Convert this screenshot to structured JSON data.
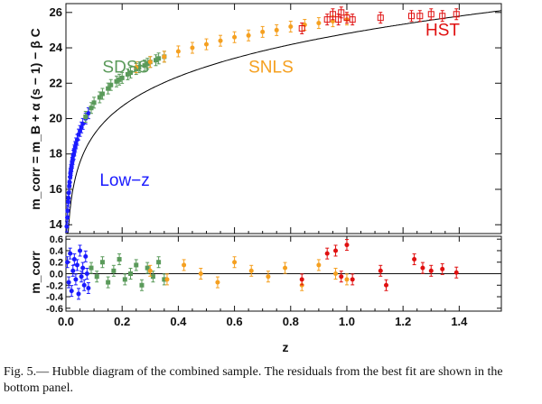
{
  "caption": "Fig. 5.— Hubble diagram of the combined sample. The residuals from the best fit are shown in the bottom panel.",
  "chart_data": [
    {
      "type": "scatter",
      "panel": "top",
      "ylabel": "m_corr = m_B + α (s − 1) − β C",
      "xlim": [
        0,
        1.55
      ],
      "ylim": [
        13.5,
        26.5
      ],
      "yticks": [
        "14",
        "16",
        "18",
        "20",
        "22",
        "24",
        "26"
      ],
      "grid": false,
      "series": [
        {
          "name": "Low-z",
          "color": "#1a1aff",
          "marker": "circle",
          "x": [
            0.003,
            0.005,
            0.006,
            0.008,
            0.009,
            0.01,
            0.012,
            0.013,
            0.015,
            0.016,
            0.018,
            0.02,
            0.022,
            0.024,
            0.026,
            0.028,
            0.03,
            0.033,
            0.036,
            0.04,
            0.045,
            0.05,
            0.055,
            0.06,
            0.07,
            0.08
          ],
          "y": [
            13.9,
            14.4,
            14.8,
            15.3,
            15.5,
            15.8,
            16.2,
            16.4,
            16.7,
            16.9,
            17.1,
            17.3,
            17.5,
            17.7,
            17.9,
            18.0,
            18.2,
            18.4,
            18.6,
            18.8,
            19.1,
            19.3,
            19.5,
            19.7,
            20.0,
            20.3
          ]
        },
        {
          "name": "SDSS",
          "color": "#5a9a5a",
          "marker": "square",
          "x": [
            0.07,
            0.09,
            0.1,
            0.12,
            0.13,
            0.15,
            0.16,
            0.18,
            0.19,
            0.2,
            0.22,
            0.23,
            0.25,
            0.26,
            0.28,
            0.29,
            0.3,
            0.32,
            0.33,
            0.35
          ],
          "y": [
            20.1,
            20.6,
            20.9,
            21.2,
            21.4,
            21.7,
            21.9,
            22.1,
            22.2,
            22.3,
            22.5,
            22.6,
            22.8,
            22.9,
            23.0,
            23.1,
            23.2,
            23.3,
            23.4,
            23.5
          ]
        },
        {
          "name": "SNLS",
          "color": "#f5a020",
          "marker": "circle",
          "x": [
            0.25,
            0.3,
            0.35,
            0.4,
            0.45,
            0.5,
            0.55,
            0.6,
            0.65,
            0.7,
            0.75,
            0.8,
            0.85,
            0.9,
            0.95,
            1.0
          ],
          "y": [
            22.9,
            23.2,
            23.5,
            23.8,
            24.0,
            24.2,
            24.4,
            24.6,
            24.7,
            24.9,
            25.0,
            25.2,
            25.3,
            25.4,
            25.5,
            25.6
          ]
        },
        {
          "name": "HST",
          "color": "#e01010",
          "marker": "open-square",
          "x": [
            0.84,
            0.93,
            0.95,
            0.97,
            0.98,
            1.0,
            1.02,
            1.12,
            1.23,
            1.26,
            1.3,
            1.34,
            1.39
          ],
          "y": [
            25.1,
            25.6,
            25.9,
            25.6,
            26.0,
            25.7,
            25.6,
            25.7,
            25.8,
            25.8,
            25.9,
            25.8,
            25.9
          ]
        }
      ],
      "annotations": [
        {
          "text": "SDSS",
          "color": "#5a9a5a",
          "x": 0.13,
          "y": 22.6
        },
        {
          "text": "SNLS",
          "color": "#f5a020",
          "x": 0.65,
          "y": 22.6
        },
        {
          "text": "HST",
          "color": "#e01010",
          "x": 1.28,
          "y": 24.7
        },
        {
          "text": "Low−z",
          "color": "#1a1aff",
          "x": 0.12,
          "y": 16.2
        }
      ],
      "fit_line": {
        "color": "#000000"
      }
    },
    {
      "type": "scatter",
      "panel": "bottom",
      "xlabel": "z",
      "ylabel": "m_corr",
      "xlim": [
        0,
        1.55
      ],
      "ylim": [
        -0.65,
        0.65
      ],
      "xticks": [
        "0.0",
        "0.2",
        "0.4",
        "0.6",
        "0.8",
        "1.0",
        "1.2",
        "1.4"
      ],
      "yticks": [
        "0.6",
        "0.4",
        "0.2",
        "0.0",
        "-0.2",
        "-0.4",
        "-0.6"
      ],
      "zero_line": true,
      "series": [
        {
          "name": "Low-z",
          "color": "#1a1aff",
          "x": [
            0.005,
            0.01,
            0.015,
            0.02,
            0.025,
            0.03,
            0.035,
            0.04,
            0.045,
            0.05,
            0.055,
            0.06,
            0.065,
            0.07,
            0.075,
            0.08
          ],
          "y": [
            0.2,
            -0.15,
            0.35,
            -0.3,
            0.05,
            0.25,
            -0.1,
            0.15,
            -0.35,
            0.4,
            -0.05,
            0.1,
            -0.2,
            0.3,
            0.0,
            -0.25
          ]
        },
        {
          "name": "SDSS",
          "color": "#5a9a5a",
          "x": [
            0.09,
            0.11,
            0.13,
            0.15,
            0.17,
            0.19,
            0.21,
            0.23,
            0.25,
            0.27,
            0.29,
            0.31,
            0.33,
            0.35
          ],
          "y": [
            0.1,
            -0.05,
            0.2,
            -0.15,
            0.05,
            0.25,
            -0.1,
            0.0,
            0.15,
            -0.2,
            0.1,
            -0.05,
            0.2,
            -0.1
          ]
        },
        {
          "name": "SNLS",
          "color": "#f5a020",
          "x": [
            0.3,
            0.36,
            0.42,
            0.48,
            0.54,
            0.6,
            0.66,
            0.72,
            0.78,
            0.84,
            0.9,
            0.96,
            1.0
          ],
          "y": [
            0.05,
            -0.1,
            0.15,
            0.0,
            -0.15,
            0.2,
            0.05,
            -0.05,
            0.1,
            -0.2,
            0.15,
            0.0,
            -0.1
          ]
        },
        {
          "name": "HST",
          "color": "#e01010",
          "x": [
            0.84,
            0.93,
            0.96,
            0.98,
            1.0,
            1.02,
            1.12,
            1.14,
            1.24,
            1.27,
            1.3,
            1.34,
            1.39
          ],
          "y": [
            -0.1,
            0.35,
            0.4,
            -0.05,
            0.5,
            -0.1,
            0.05,
            -0.2,
            0.25,
            0.1,
            0.05,
            0.08,
            0.02
          ]
        }
      ]
    }
  ]
}
